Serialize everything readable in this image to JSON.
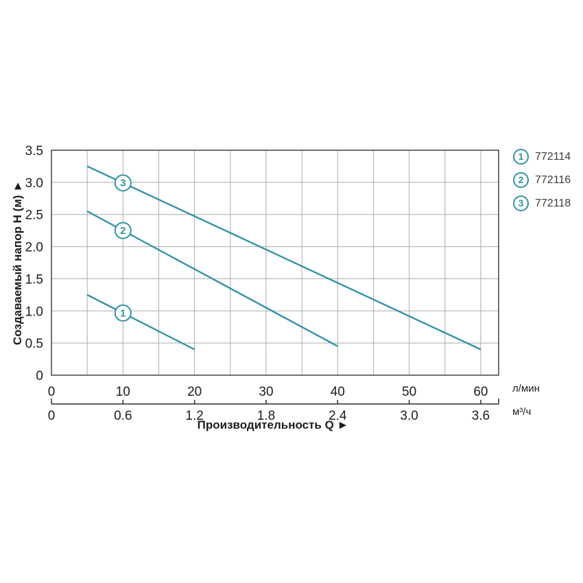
{
  "legend": {
    "items": [
      {
        "num": "1",
        "code": "772114"
      },
      {
        "num": "2",
        "code": "772116"
      },
      {
        "num": "3",
        "code": "772118"
      }
    ]
  },
  "chart_data": {
    "type": "line",
    "title": "",
    "xlabel": "Производительность Q ►",
    "ylabel": "Создаваемый напор H (м) ►",
    "x_axis_lmin": {
      "unit": "л/мин",
      "ticks": [
        0,
        10,
        20,
        30,
        40,
        50,
        60
      ],
      "labels": [
        "0",
        "10",
        "20",
        "30",
        "40",
        "50",
        "60"
      ]
    },
    "x_axis_m3h": {
      "unit": "м³/ч",
      "ticks": [
        0,
        0.6,
        1.2,
        1.8,
        2.4,
        3.0,
        3.6
      ],
      "labels": [
        "0",
        "0.6",
        "1.2",
        "1.8",
        "2.4",
        "3.0",
        "3.6"
      ],
      "lmin_per_m3h": 16.6667
    },
    "y_axis": {
      "ticks": [
        0,
        0.5,
        1,
        1.5,
        2,
        2.5,
        3,
        3.5
      ],
      "labels": [
        "0",
        "0.5",
        "1.0",
        "1.5",
        "2.0",
        "2.5",
        "3.0",
        "3.5"
      ]
    },
    "xlim_lmin": [
      0,
      62.5
    ],
    "ylim": [
      0,
      3.5
    ],
    "grid_step_x_lmin": 5,
    "grid_step_y": 0.5,
    "grid_on": true,
    "legend_position": "top-right",
    "series": [
      {
        "label": "1",
        "article": "772114",
        "points": [
          [
            5,
            1.25
          ],
          [
            20,
            0.4
          ]
        ],
        "marker_q": 10
      },
      {
        "label": "2",
        "article": "772116",
        "points": [
          [
            5,
            2.55
          ],
          [
            40,
            0.45
          ]
        ],
        "marker_q": 10
      },
      {
        "label": "3",
        "article": "772118",
        "points": [
          [
            5,
            3.25
          ],
          [
            60,
            0.4
          ]
        ],
        "marker_q": 10
      }
    ],
    "colors": {
      "line": "#2f93a9",
      "grid": "#ababab",
      "frame": "#4f4f4f",
      "text": "#1c1c1c"
    }
  }
}
